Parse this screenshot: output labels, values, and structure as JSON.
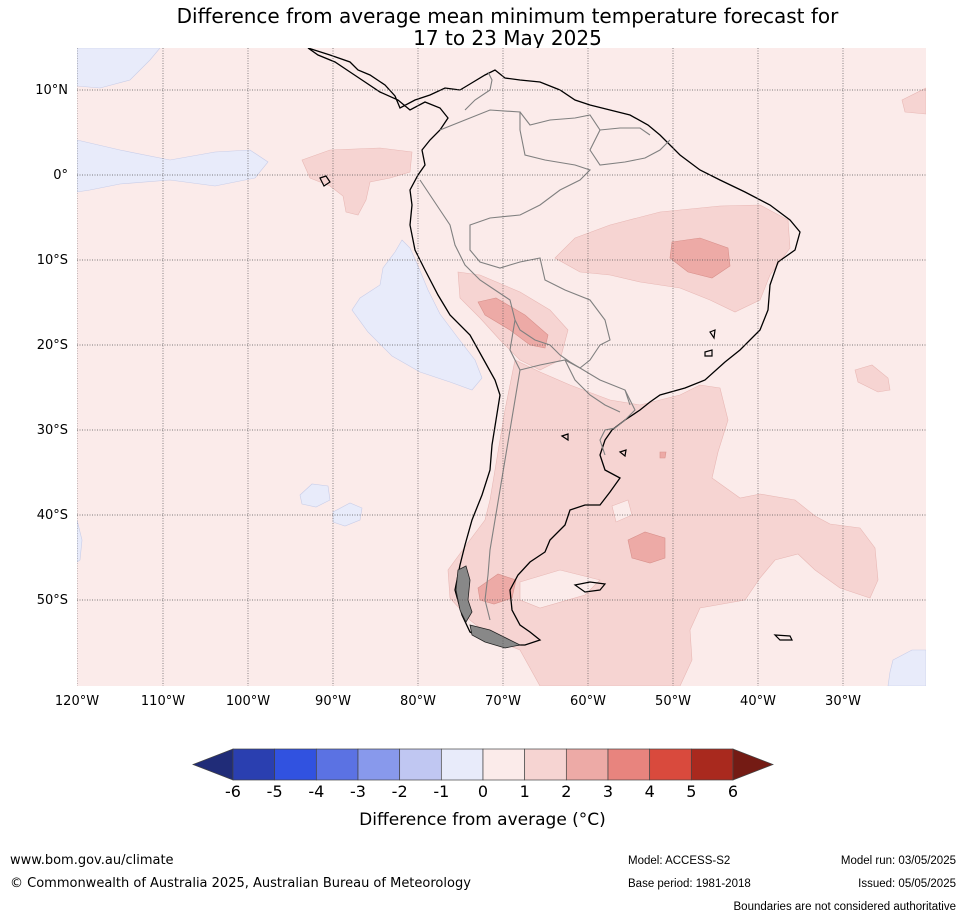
{
  "title": {
    "line1": "Difference from average mean minimum temperature forecast for",
    "line2": "17 to 23 May 2025"
  },
  "map": {
    "lat_labels": [
      "10°N",
      "0°",
      "10°S",
      "20°S",
      "30°S",
      "40°S",
      "50°S"
    ],
    "lon_labels": [
      "120°W",
      "110°W",
      "100°W",
      "90°W",
      "80°W",
      "70°W",
      "60°W",
      "50°W",
      "40°W",
      "30°W"
    ],
    "lon_range": [
      -120,
      -20
    ],
    "lat_range": [
      -60,
      15
    ],
    "colors": {
      "ocean_base": "#fbebea",
      "anom_1_2": "#f6d4d2",
      "anom_2_3": "#edaaa6",
      "anom_neg1_0": "#e8ebfa",
      "coast": "#000000",
      "borders": "#808080"
    }
  },
  "colorbar": {
    "ticks": [
      "-6",
      "-5",
      "-4",
      "-3",
      "-2",
      "-1",
      "0",
      "1",
      "2",
      "3",
      "4",
      "5",
      "6"
    ],
    "colors": [
      "#202c78",
      "#2a3fb0",
      "#3152e0",
      "#5b72e3",
      "#8899ec",
      "#c0c7f2",
      "#e8ebfa",
      "#fbebea",
      "#f6d4d2",
      "#edaaa6",
      "#e8847e",
      "#d94a3d",
      "#a9291e",
      "#741b14"
    ],
    "label": "Difference from average (°C)"
  },
  "footer": {
    "url": "www.bom.gov.au/climate",
    "copyright": "© Commonwealth of Australia 2025, Australian Bureau of Meteorology",
    "model": "Model: ACCESS-S2",
    "base_period": "Base period: 1981-2018",
    "model_run": "Model run: 03/05/2025",
    "issued": "Issued: 05/05/2025",
    "disclaimer": "Boundaries are not considered authoritative"
  }
}
